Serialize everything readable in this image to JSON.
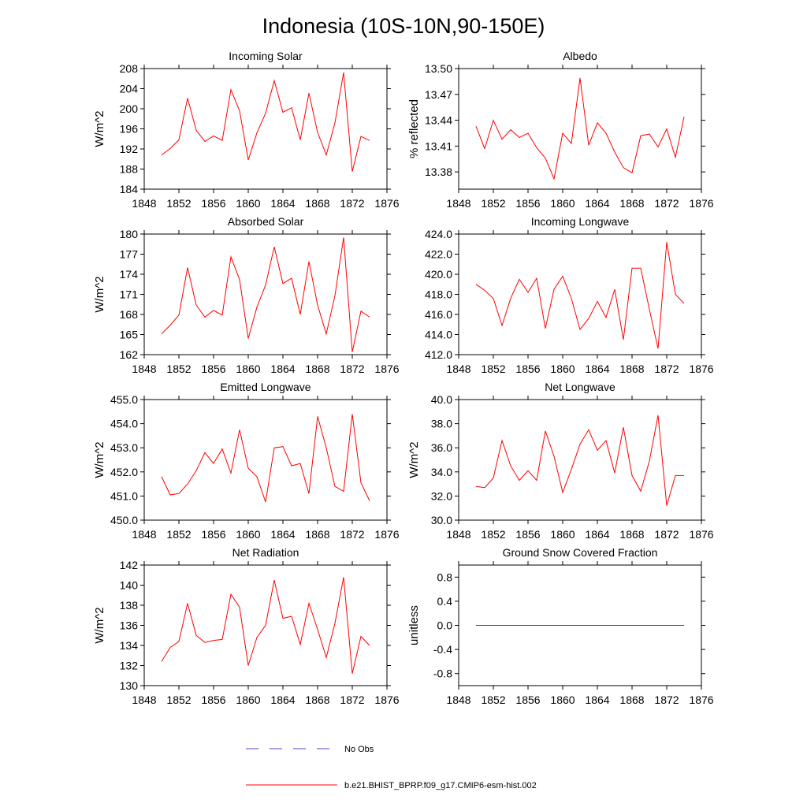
{
  "title": "Indonesia (10S-10N,90-150E)",
  "series_color": "#ff0000",
  "obs_color": "#4a4ac8",
  "legend": [
    {
      "label": "No Obs",
      "style": "dashed",
      "color": "#4a4ac8"
    },
    {
      "label": "b.e21.BHIST_BPRP.f09_g17.CMIP6-esm-hist.002",
      "style": "solid",
      "color": "#ff0000"
    }
  ],
  "chart_data": [
    {
      "type": "line",
      "title": "Incoming Solar",
      "ylabel": "W/m^2",
      "xlim": [
        1848,
        1876
      ],
      "xticks": [
        1848,
        1852,
        1856,
        1860,
        1864,
        1868,
        1872,
        1876
      ],
      "ylim": [
        184,
        208
      ],
      "yticks": [
        184,
        188,
        192,
        196,
        200,
        204,
        208
      ],
      "ytick_labels": [
        "184",
        "188",
        "192",
        "196",
        "200",
        "204",
        "208"
      ],
      "x": [
        1850,
        1851,
        1852,
        1853,
        1854,
        1855,
        1856,
        1857,
        1858,
        1859,
        1860,
        1861,
        1862,
        1863,
        1864,
        1865,
        1866,
        1867,
        1868,
        1869,
        1870,
        1871,
        1872,
        1873,
        1874
      ],
      "values": [
        190.8,
        192.1,
        193.8,
        202.1,
        195.7,
        193.5,
        194.6,
        193.7,
        203.8,
        199.6,
        189.8,
        195.2,
        199.1,
        205.6,
        199.3,
        200.2,
        193.8,
        203.1,
        195.3,
        190.8,
        197.2,
        207.2,
        187.5,
        194.5,
        193.7
      ]
    },
    {
      "type": "line",
      "title": "Albedo",
      "ylabel": "% reflected",
      "xlim": [
        1848,
        1876
      ],
      "xticks": [
        1848,
        1852,
        1856,
        1860,
        1864,
        1868,
        1872,
        1876
      ],
      "ylim": [
        13.36,
        13.5
      ],
      "yticks": [
        13.38,
        13.41,
        13.44,
        13.47,
        13.5
      ],
      "ytick_labels": [
        "13.38",
        "13.41",
        "13.44",
        "13.47",
        "13.50"
      ],
      "x": [
        1850,
        1851,
        1852,
        1853,
        1854,
        1855,
        1856,
        1857,
        1858,
        1859,
        1860,
        1861,
        1862,
        1863,
        1864,
        1865,
        1866,
        1867,
        1868,
        1869,
        1870,
        1871,
        1872,
        1873,
        1874
      ],
      "values": [
        13.433,
        13.407,
        13.44,
        13.418,
        13.429,
        13.42,
        13.425,
        13.408,
        13.396,
        13.372,
        13.425,
        13.413,
        13.489,
        13.411,
        13.437,
        13.425,
        13.403,
        13.385,
        13.379,
        13.422,
        13.424,
        13.409,
        13.43,
        13.397,
        13.444
      ]
    },
    {
      "type": "line",
      "title": "Absorbed Solar",
      "ylabel": "W/m^2",
      "xlim": [
        1848,
        1876
      ],
      "xticks": [
        1848,
        1852,
        1856,
        1860,
        1864,
        1868,
        1872,
        1876
      ],
      "ylim": [
        162,
        180
      ],
      "yticks": [
        162,
        165,
        168,
        171,
        174,
        177,
        180
      ],
      "ytick_labels": [
        "162",
        "165",
        "168",
        "171",
        "174",
        "177",
        "180"
      ],
      "x": [
        1850,
        1851,
        1852,
        1853,
        1854,
        1855,
        1856,
        1857,
        1858,
        1859,
        1860,
        1861,
        1862,
        1863,
        1864,
        1865,
        1866,
        1867,
        1868,
        1869,
        1870,
        1871,
        1872,
        1873,
        1874
      ],
      "values": [
        165.1,
        166.4,
        167.9,
        175.0,
        169.4,
        167.6,
        168.6,
        167.9,
        176.6,
        173.2,
        164.4,
        169.1,
        172.4,
        178.1,
        172.6,
        173.4,
        168.0,
        175.9,
        169.4,
        165.1,
        170.8,
        179.5,
        162.4,
        168.5,
        167.6
      ]
    },
    {
      "type": "line",
      "title": "Incoming Longwave",
      "ylabel": "",
      "xlim": [
        1848,
        1876
      ],
      "xticks": [
        1848,
        1852,
        1856,
        1860,
        1864,
        1868,
        1872,
        1876
      ],
      "ylim": [
        412,
        424
      ],
      "yticks": [
        412,
        414,
        416,
        418,
        420,
        422,
        424
      ],
      "ytick_labels": [
        "412.0",
        "414.0",
        "416.0",
        "418.0",
        "420.0",
        "422.0",
        "424.0"
      ],
      "x": [
        1850,
        1851,
        1852,
        1853,
        1854,
        1855,
        1856,
        1857,
        1858,
        1859,
        1860,
        1861,
        1862,
        1863,
        1864,
        1865,
        1866,
        1867,
        1868,
        1869,
        1870,
        1871,
        1872,
        1873,
        1874
      ],
      "values": [
        419.0,
        418.4,
        417.6,
        414.9,
        417.6,
        419.5,
        418.2,
        419.6,
        414.6,
        418.5,
        419.8,
        417.6,
        414.5,
        415.6,
        417.3,
        415.7,
        418.5,
        413.5,
        420.6,
        420.6,
        416.5,
        412.6,
        423.2,
        418.0,
        417.1
      ]
    },
    {
      "type": "line",
      "title": "Emitted Longwave",
      "ylabel": "W/m^2",
      "xlim": [
        1848,
        1876
      ],
      "xticks": [
        1848,
        1852,
        1856,
        1860,
        1864,
        1868,
        1872,
        1876
      ],
      "ylim": [
        450,
        455
      ],
      "yticks": [
        450,
        451,
        452,
        453,
        454,
        455
      ],
      "ytick_labels": [
        "450.0",
        "451.0",
        "452.0",
        "453.0",
        "454.0",
        "455.0"
      ],
      "x": [
        1850,
        1851,
        1852,
        1853,
        1854,
        1855,
        1856,
        1857,
        1858,
        1859,
        1860,
        1861,
        1862,
        1863,
        1864,
        1865,
        1866,
        1867,
        1868,
        1869,
        1870,
        1871,
        1872,
        1873,
        1874
      ],
      "values": [
        451.8,
        451.05,
        451.1,
        451.5,
        452.05,
        452.8,
        452.35,
        452.95,
        451.95,
        453.75,
        452.15,
        451.8,
        450.75,
        453.0,
        453.05,
        452.25,
        452.35,
        451.1,
        454.3,
        453.0,
        451.4,
        451.2,
        454.4,
        451.55,
        450.8
      ]
    },
    {
      "type": "line",
      "title": "Net Longwave",
      "ylabel": "W/m^2",
      "xlim": [
        1848,
        1876
      ],
      "xticks": [
        1848,
        1852,
        1856,
        1860,
        1864,
        1868,
        1872,
        1876
      ],
      "ylim": [
        30,
        40
      ],
      "yticks": [
        30,
        32,
        34,
        36,
        38,
        40
      ],
      "ytick_labels": [
        "30.0",
        "32.0",
        "34.0",
        "36.0",
        "38.0",
        "40.0"
      ],
      "x": [
        1850,
        1851,
        1852,
        1853,
        1854,
        1855,
        1856,
        1857,
        1858,
        1859,
        1860,
        1861,
        1862,
        1863,
        1864,
        1865,
        1866,
        1867,
        1868,
        1869,
        1870,
        1871,
        1872,
        1873,
        1874
      ],
      "values": [
        32.8,
        32.7,
        33.5,
        36.6,
        34.5,
        33.3,
        34.1,
        33.3,
        37.4,
        35.3,
        32.3,
        34.2,
        36.3,
        37.5,
        35.8,
        36.6,
        33.9,
        37.7,
        33.7,
        32.4,
        34.9,
        38.7,
        31.2,
        33.7,
        33.7
      ]
    },
    {
      "type": "line",
      "title": "Net Radiation",
      "ylabel": "W/m^2",
      "xlim": [
        1848,
        1876
      ],
      "xticks": [
        1848,
        1852,
        1856,
        1860,
        1864,
        1868,
        1872,
        1876
      ],
      "ylim": [
        130,
        142
      ],
      "yticks": [
        130,
        132,
        134,
        136,
        138,
        140,
        142
      ],
      "ytick_labels": [
        "130",
        "132",
        "134",
        "136",
        "138",
        "140",
        "142"
      ],
      "x": [
        1850,
        1851,
        1852,
        1853,
        1854,
        1855,
        1856,
        1857,
        1858,
        1859,
        1860,
        1861,
        1862,
        1863,
        1864,
        1865,
        1866,
        1867,
        1868,
        1869,
        1870,
        1871,
        1872,
        1873,
        1874
      ],
      "values": [
        132.4,
        133.8,
        134.4,
        138.2,
        135.0,
        134.3,
        134.5,
        134.6,
        139.1,
        137.8,
        132.0,
        134.8,
        136.0,
        140.5,
        136.7,
        136.9,
        134.1,
        138.2,
        135.6,
        132.8,
        136.2,
        140.8,
        131.2,
        134.9,
        134.0
      ]
    },
    {
      "type": "line",
      "title": "Ground Snow Covered Fraction",
      "ylabel": "unitless",
      "xlim": [
        1848,
        1876
      ],
      "xticks": [
        1848,
        1852,
        1856,
        1860,
        1864,
        1868,
        1872,
        1876
      ],
      "ylim": [
        -1.0,
        1.0
      ],
      "yticks": [
        -0.8,
        -0.4,
        0.0,
        0.4,
        0.8
      ],
      "ytick_labels": [
        "-0.8",
        "-0.4",
        "0.0",
        "0.4",
        "0.8"
      ],
      "x": [
        1850,
        1874
      ],
      "values": [
        0.0,
        0.0
      ]
    }
  ]
}
